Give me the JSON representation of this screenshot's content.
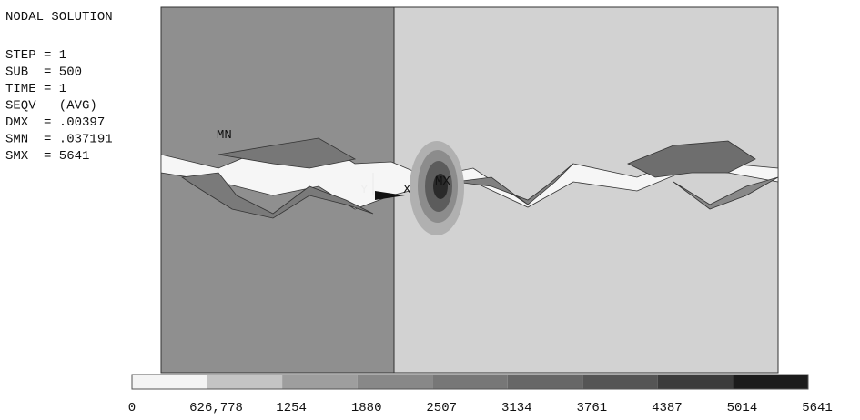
{
  "header": {
    "title": "NODAL SOLUTION",
    "lines": [
      "STEP = 1",
      "SUB  = 500",
      "TIME = 1",
      "SEQV   (AVG)",
      "DMX  = .00397",
      "SMN  = .037191",
      "SMX  = 5641"
    ]
  },
  "plot": {
    "labels": {
      "min": "MN",
      "max": "MX",
      "axis_y": "Y",
      "axis_x": "X"
    }
  },
  "legend": {
    "labels": [
      "0",
      "626,778",
      "1254",
      "1880",
      "2507",
      "3134",
      "3761",
      "4387",
      "5014",
      "5641"
    ],
    "colors": [
      "#f4f4f4",
      "#c4c4c4",
      "#9e9e9e",
      "#888888",
      "#777777",
      "#676767",
      "#555555",
      "#3c3c3c",
      "#1c1c1c"
    ]
  }
}
